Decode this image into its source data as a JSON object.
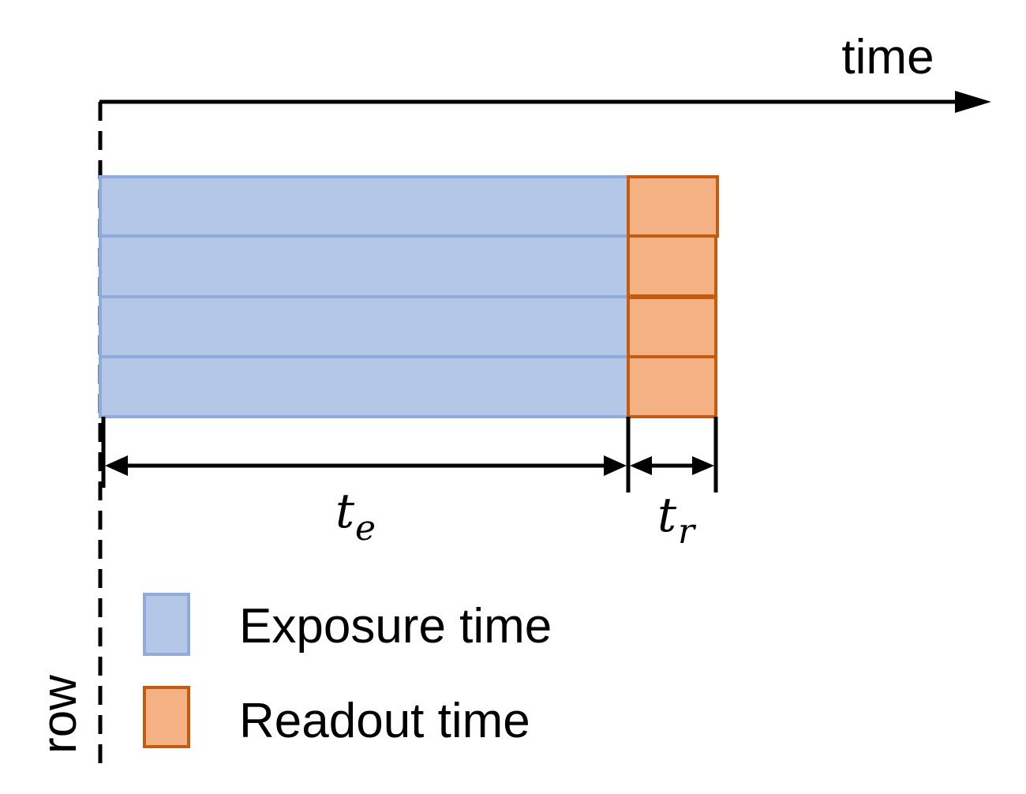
{
  "axes": {
    "x_label": "time",
    "y_label": "row"
  },
  "annotations": {
    "exposure_symbol": "t",
    "exposure_subscript": "e",
    "readout_symbol": "t",
    "readout_subscript": "r"
  },
  "legend": {
    "items": [
      {
        "label": "Exposure time",
        "fill": "#b4c7e7",
        "stroke": "#8faadc"
      },
      {
        "label": "Readout time",
        "fill": "#f4b183",
        "stroke": "#c55a11"
      }
    ]
  },
  "rows": 4,
  "colors": {
    "exposure_fill": "#b4c7e7",
    "exposure_stroke": "#8faadc",
    "readout_fill": "#f4b183",
    "readout_stroke": "#c55a11",
    "axis": "#000000"
  }
}
